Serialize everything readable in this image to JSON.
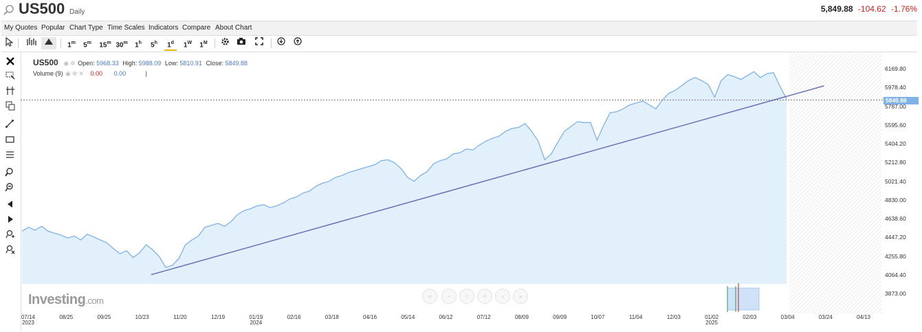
{
  "header": {
    "symbol": "US500",
    "period": "Daily",
    "last": "5,849.88",
    "change": "-104.62",
    "change_pct": "-1.76%"
  },
  "menu": [
    "My Quotes",
    "Popular",
    "Chart Type",
    "Time Scales",
    "Indicators",
    "Compare",
    "About Chart"
  ],
  "toolbar": {
    "timeframes": [
      {
        "n": "1",
        "u": "m"
      },
      {
        "n": "5",
        "u": "m"
      },
      {
        "n": "15",
        "u": "m"
      },
      {
        "n": "30",
        "u": "m"
      },
      {
        "n": "1",
        "u": "h"
      },
      {
        "n": "5",
        "u": "h"
      },
      {
        "n": "1",
        "u": "d"
      },
      {
        "n": "1",
        "u": "W"
      },
      {
        "n": "1",
        "u": "M"
      }
    ],
    "active_timeframe": "1d"
  },
  "legend": {
    "symbol": "US500",
    "open_label": "Open:",
    "open": "5968.33",
    "high_label": "High:",
    "high": "5988.09",
    "low_label": "Low:",
    "low": "5810.91",
    "close_label": "Close:",
    "close": "5849.88",
    "volume_label": "Volume (9)",
    "volume_value1": "0.00",
    "volume_value2": "0.00",
    "volume_cursor": "|"
  },
  "branding": {
    "logo_main": "Investing",
    "logo_suffix": ".com"
  },
  "colors": {
    "line": "#7fb2e8",
    "area": "#e2f0fc",
    "trend": "#6b6fb5",
    "down": "#d91e18",
    "accent": "#e6b800"
  },
  "chart_data": {
    "type": "area",
    "y_ticks": [
      "6169.80",
      "5978.40",
      "5787.00",
      "5595.60",
      "5404.20",
      "5212.80",
      "5021.40",
      "4830.00",
      "4638.60",
      "4447.20",
      "4255.80",
      "4064.40",
      "3873.00"
    ],
    "ylim": [
      3873.0,
      6169.8
    ],
    "last_price": "5849.88",
    "x_ticks": [
      {
        "label": "07/14",
        "sub": "2023"
      },
      {
        "label": "08/25",
        "sub": ""
      },
      {
        "label": "09/25",
        "sub": ""
      },
      {
        "label": "10/23",
        "sub": ""
      },
      {
        "label": "11/20",
        "sub": ""
      },
      {
        "label": "12/19",
        "sub": ""
      },
      {
        "label": "01/19",
        "sub": "2024"
      },
      {
        "label": "02/16",
        "sub": ""
      },
      {
        "label": "03/18",
        "sub": ""
      },
      {
        "label": "04/16",
        "sub": ""
      },
      {
        "label": "05/14",
        "sub": ""
      },
      {
        "label": "06/12",
        "sub": ""
      },
      {
        "label": "07/12",
        "sub": ""
      },
      {
        "label": "08/09",
        "sub": ""
      },
      {
        "label": "09/09",
        "sub": ""
      },
      {
        "label": "10/07",
        "sub": ""
      },
      {
        "label": "11/04",
        "sub": ""
      },
      {
        "label": "12/03",
        "sub": ""
      },
      {
        "label": "01/02",
        "sub": "2025"
      },
      {
        "label": "02/03",
        "sub": ""
      },
      {
        "label": "03/04",
        "sub": ""
      },
      {
        "label": "03/24",
        "sub": ""
      },
      {
        "label": "04/13",
        "sub": ""
      }
    ],
    "series": [
      {
        "values": [
          4510,
          4550,
          4520,
          4560,
          4510,
          4490,
          4470,
          4440,
          4460,
          4420,
          4480,
          4450,
          4420,
          4390,
          4330,
          4280,
          4310,
          4240,
          4290,
          4370,
          4320,
          4250,
          4140,
          4160,
          4230,
          4370,
          4420,
          4460,
          4550,
          4570,
          4590,
          4560,
          4610,
          4680,
          4720,
          4740,
          4770,
          4780,
          4750,
          4770,
          4800,
          4840,
          4860,
          4900,
          4920,
          4970,
          5000,
          5020,
          5060,
          5080,
          5110,
          5130,
          5150,
          5170,
          5190,
          5230,
          5240,
          5210,
          5150,
          5060,
          5020,
          5080,
          5120,
          5200,
          5230,
          5250,
          5300,
          5310,
          5350,
          5340,
          5390,
          5430,
          5460,
          5480,
          5530,
          5560,
          5570,
          5610,
          5530,
          5430,
          5240,
          5300,
          5420,
          5530,
          5580,
          5630,
          5620,
          5620,
          5440,
          5590,
          5720,
          5730,
          5760,
          5800,
          5820,
          5840,
          5800,
          5760,
          5850,
          5920,
          5950,
          6000,
          6050,
          6080,
          6050,
          6010,
          5880,
          6050,
          6110,
          6090,
          6060,
          6100,
          6140,
          6080,
          6120,
          6130,
          5990,
          5860
        ]
      }
    ],
    "trendline": {
      "start": {
        "x": "10/20/2023",
        "y": 4065
      },
      "end": {
        "x": "03/14/2025",
        "y": 5995
      }
    },
    "grid": false,
    "legend": "top-left"
  }
}
